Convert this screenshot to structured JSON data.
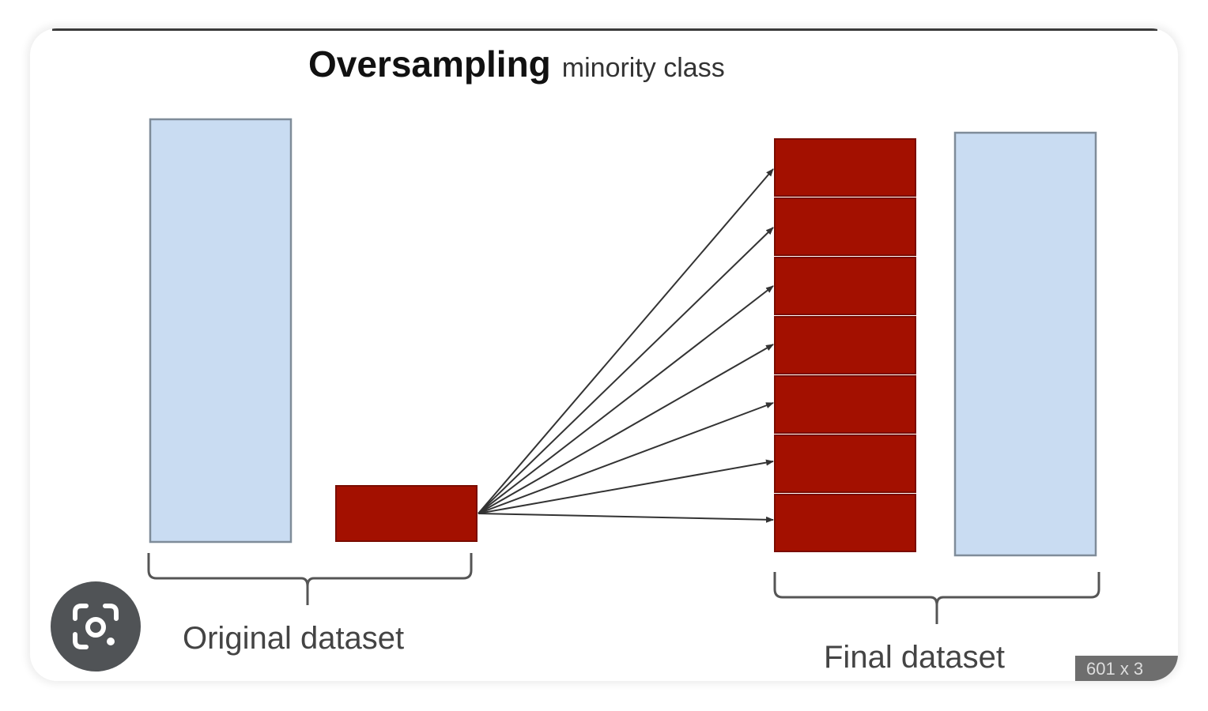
{
  "title": {
    "main": "Oversampling",
    "sub": "minority class"
  },
  "labels": {
    "original": "Original dataset",
    "final": "Final dataset"
  },
  "badge": "601 x 3",
  "colors": {
    "majority_fill": "#c9dcf2",
    "majority_stroke": "#7f8c99",
    "minority_fill": "#a31000",
    "minority_stroke": "#7a0c00",
    "arrow": "#333333",
    "brace": "#555555",
    "lens_button": "#505356"
  },
  "icons": {
    "lens": "google-lens-icon"
  },
  "diagram": {
    "minority_copies": 7
  }
}
